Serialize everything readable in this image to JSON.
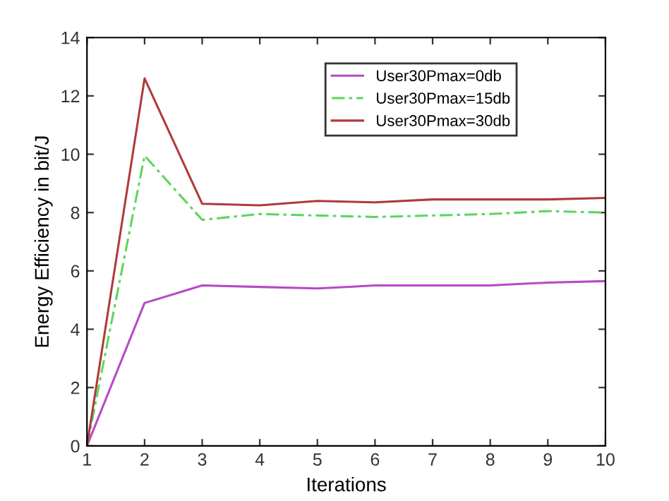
{
  "chart_data": {
    "type": "line",
    "xlabel": "Iterations",
    "ylabel": "Energy Efficiency in bit/J",
    "x": [
      1,
      2,
      3,
      4,
      5,
      6,
      7,
      8,
      9,
      10
    ],
    "series": [
      {
        "name": "User30Pmax=0db",
        "color": "#b848c8",
        "values": [
          0,
          4.9,
          5.5,
          5.45,
          5.4,
          5.5,
          5.5,
          5.5,
          5.6,
          5.65
        ]
      },
      {
        "name": "User30Pmax=15db",
        "color": "#5cd65c",
        "line_style": "dashed",
        "values": [
          0,
          9.95,
          7.75,
          7.95,
          7.9,
          7.85,
          7.9,
          7.95,
          8.05,
          8.0
        ]
      },
      {
        "name": "User30Pmax=30db",
        "color": "#b03a3a",
        "values": [
          0,
          12.6,
          8.3,
          8.25,
          8.4,
          8.35,
          8.45,
          8.45,
          8.45,
          8.5
        ]
      }
    ],
    "xlim": [
      1,
      10
    ],
    "xticks": [
      1,
      2,
      3,
      4,
      5,
      6,
      7,
      8,
      9,
      10
    ],
    "ylim": [
      0,
      14
    ],
    "yticks": [
      0,
      2,
      4,
      6,
      8,
      10,
      12,
      14
    ],
    "legend": "top right",
    "grid": false
  }
}
